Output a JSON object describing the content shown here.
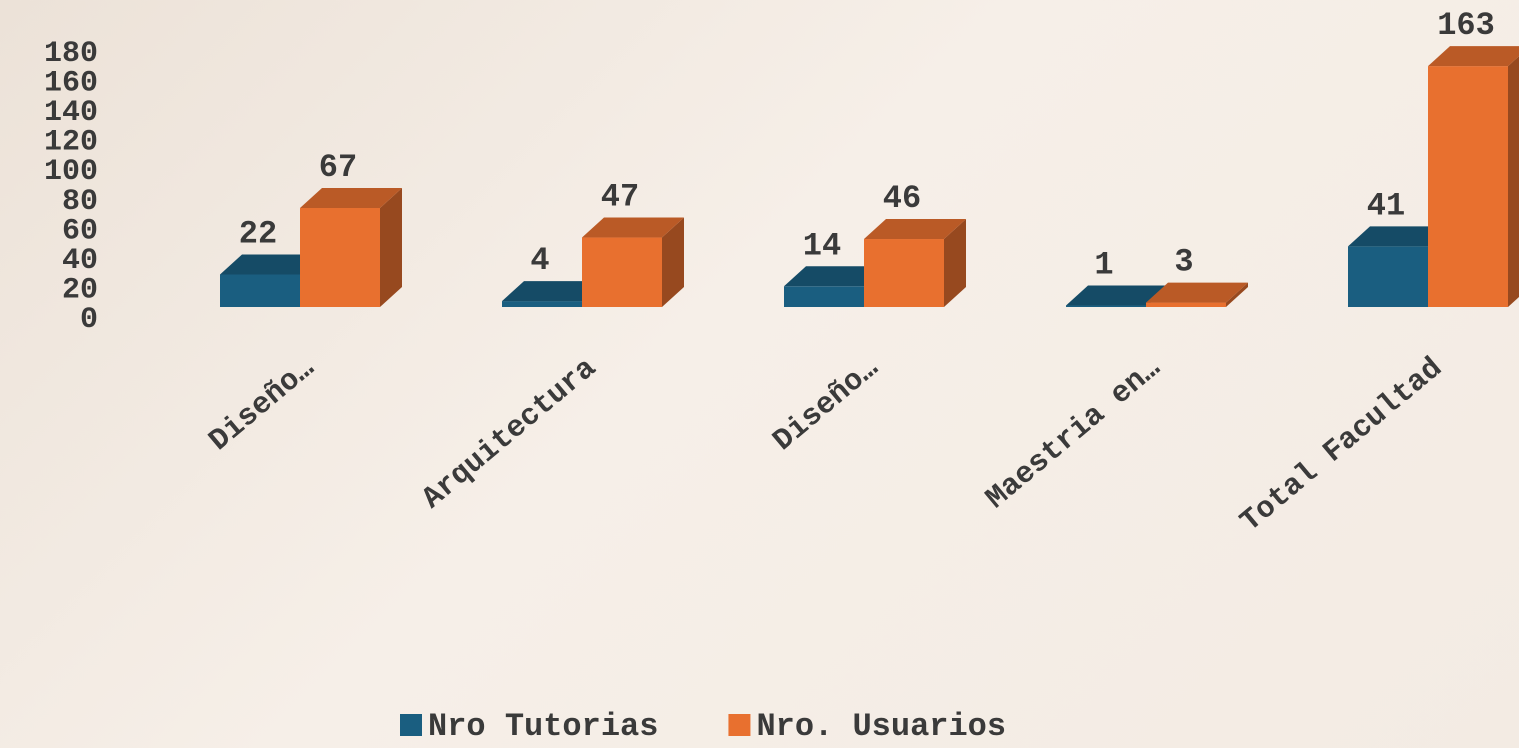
{
  "chart_data": {
    "type": "bar3d",
    "categories": [
      "Diseño…",
      "Arquitectura",
      "Diseño…",
      "Maestria en…",
      "Total Facultad"
    ],
    "series": [
      {
        "name": "Nro Tutorias",
        "color": "#1a5e80",
        "values": [
          22,
          4,
          14,
          1,
          41
        ]
      },
      {
        "name": "Nro. Usuarios",
        "color": "#e8702f",
        "values": [
          67,
          47,
          46,
          3,
          163
        ]
      }
    ],
    "ylim": [
      0,
      180
    ],
    "yticks": [
      0,
      20,
      40,
      60,
      80,
      100,
      120,
      140,
      160,
      180
    ],
    "legend": "bottom"
  }
}
